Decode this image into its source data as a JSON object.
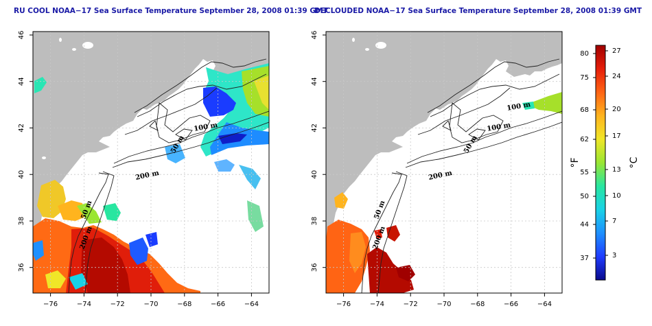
{
  "panels": [
    {
      "id": "raw",
      "title": "RU COOL NOAA−17 Sea Surface Temperature September 28, 2008 01:39 GMT",
      "x_ticks": [
        "−76",
        "−74",
        "−72",
        "−70",
        "−68",
        "−66",
        "−64"
      ],
      "y_ticks": [
        "36",
        "38",
        "40",
        "42",
        "44",
        "46"
      ],
      "contours": [
        "100 m",
        "50 m",
        "200 m",
        "50 m",
        "200 m"
      ]
    },
    {
      "id": "declouded",
      "title": "DECLOUDED NOAA−17 Sea Surface Temperature September 28, 2008 01:39 GMT",
      "x_ticks": [
        "−76",
        "−74",
        "−72",
        "−70",
        "−68",
        "−66",
        "−64"
      ],
      "y_ticks": [
        "36",
        "38",
        "40",
        "42",
        "44",
        "46"
      ],
      "contours": [
        "100 m",
        "100 m",
        "50 m",
        "200 m",
        "50 m",
        "200 m"
      ]
    }
  ],
  "colorbar": {
    "fahrenheit_ticks": [
      "80",
      "75",
      "68",
      "62",
      "55",
      "50",
      "44",
      "37"
    ],
    "celsius_ticks": [
      "27",
      "24",
      "20",
      "17",
      "13",
      "10",
      "7",
      "3"
    ],
    "fahrenheit_unit": "°F",
    "celsius_unit": "°C",
    "colors": [
      "#0a0a8c",
      "#1f3cff",
      "#1e90ff",
      "#19d2e6",
      "#28e6a0",
      "#9ae632",
      "#f0e628",
      "#ffb41e",
      "#ff6414",
      "#e61e0a",
      "#a00000"
    ]
  },
  "colors": {
    "land": "#bdbdbd",
    "ocean": "#ffffff",
    "grid": "#c8c8c8",
    "title": "#1a1aa6"
  }
}
